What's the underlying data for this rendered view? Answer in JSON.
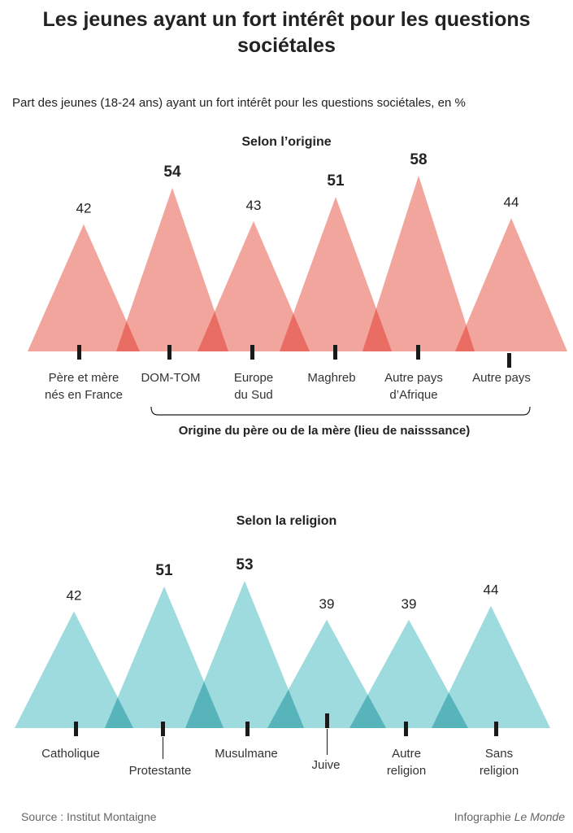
{
  "title": "Les jeunes ayant un fort intérêt pour les questions sociétales",
  "subtitle": "Part des jeunes (18-24 ans) ayant un fort intérêt pour les questions sociétales, en %",
  "source": "Source : Institut Montaigne",
  "credit_prefix": "Infographie ",
  "credit_brand": "Le Monde",
  "colors": {
    "origin": "#f2a59c",
    "origin_overlap": "#ea6d64",
    "religion": "#9ddbde",
    "religion_overlap": "#58b4bb"
  },
  "chart_data": [
    {
      "type": "bar",
      "title": "Selon l’origine",
      "categories": [
        "Père et mère\nnés en France",
        "DOM-TOM",
        "Europe\ndu Sud",
        "Maghreb",
        "Autre pays\nd’Afrique",
        "Autre pays"
      ],
      "values": [
        42,
        54,
        43,
        51,
        58,
        44
      ],
      "highlight": [
        false,
        true,
        false,
        true,
        true,
        false
      ],
      "bracket_label": "Origine du père ou de la mère (lieu de naisssance)",
      "ylim": [
        0,
        58
      ]
    },
    {
      "type": "bar",
      "title": "Selon la religion",
      "categories": [
        "Catholique",
        "Protestante",
        "Musulmane",
        "Juive",
        "Autre\nreligion",
        "Sans\nreligion"
      ],
      "values": [
        42,
        51,
        53,
        39,
        39,
        44
      ],
      "highlight": [
        false,
        true,
        true,
        false,
        false,
        false
      ],
      "ylim": [
        0,
        53
      ]
    }
  ]
}
